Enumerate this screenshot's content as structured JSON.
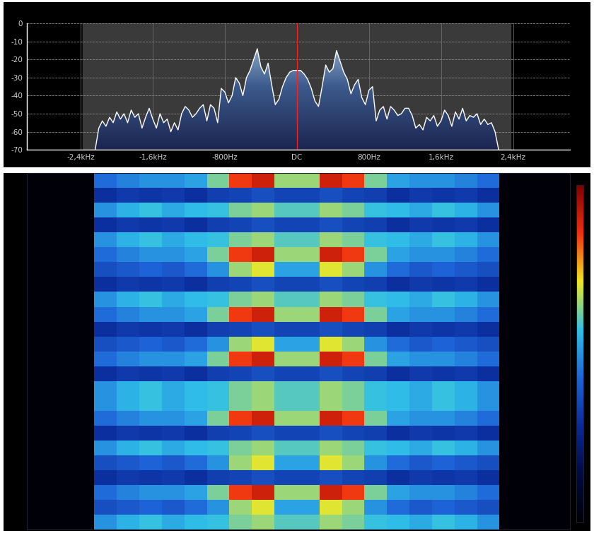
{
  "chart_data": [
    {
      "type": "line",
      "x": [
        -2240,
        -2200,
        -2160,
        -2120,
        -2080,
        -2040,
        -2000,
        -1960,
        -1920,
        -1880,
        -1840,
        -1800,
        -1760,
        -1720,
        -1680,
        -1640,
        -1600,
        -1560,
        -1520,
        -1480,
        -1440,
        -1400,
        -1360,
        -1320,
        -1280,
        -1240,
        -1200,
        -1160,
        -1120,
        -1080,
        -1040,
        -1000,
        -960,
        -920,
        -880,
        -840,
        -800,
        -760,
        -720,
        -680,
        -640,
        -600,
        -560,
        -520,
        -480,
        -440,
        -400,
        -360,
        -320,
        -280,
        -240,
        -200,
        -160,
        -120,
        -80,
        -40,
        0,
        40,
        80,
        120,
        160,
        200,
        240,
        280,
        320,
        360,
        400,
        440,
        480,
        520,
        560,
        600,
        640,
        680,
        720,
        760,
        800,
        840,
        880,
        920,
        960,
        1000,
        1040,
        1080,
        1120,
        1160,
        1200,
        1240,
        1280,
        1320,
        1360,
        1400,
        1440,
        1480,
        1520,
        1560,
        1600,
        1640,
        1680,
        1720,
        1760,
        1800,
        1840,
        1880,
        1920,
        1960,
        2000,
        2040,
        2080,
        2120,
        2160,
        2200,
        2240
      ],
      "values": [
        -70,
        -58,
        -54,
        -57,
        -52,
        -55,
        -49,
        -53,
        -50,
        -55,
        -48,
        -52,
        -50,
        -58,
        -52,
        -47,
        -53,
        -58,
        -50,
        -55,
        -53,
        -60,
        -55,
        -59,
        -50,
        -46,
        -48,
        -52,
        -50,
        -47,
        -45,
        -54,
        -45,
        -47,
        -55,
        -36,
        -38,
        -44,
        -40,
        -30,
        -33,
        -40,
        -30,
        -26,
        -20,
        -14,
        -24,
        -28,
        -22,
        -34,
        -45,
        -42,
        -35,
        -30,
        -27,
        -26,
        -26,
        -26,
        -28,
        -31,
        -36,
        -43,
        -46,
        -35,
        -23,
        -27,
        -25,
        -15,
        -21,
        -27,
        -31,
        -39,
        -34,
        -31,
        -41,
        -45,
        -37,
        -35,
        -54,
        -48,
        -46,
        -53,
        -46,
        -48,
        -51,
        -50,
        -47,
        -47,
        -51,
        -58,
        -56,
        -59,
        -52,
        -54,
        -51,
        -57,
        -54,
        -48,
        -51,
        -57,
        -49,
        -53,
        -47,
        -54,
        -51,
        -52,
        -50,
        -56,
        -53,
        -56,
        -55,
        -60,
        -70
      ],
      "xlim": [
        -3000,
        3035
      ],
      "ylim": [
        -70,
        0
      ],
      "xticks": [
        {
          "value": -2400,
          "label": "-2,4kHz"
        },
        {
          "value": -1600,
          "label": "-1,6kHz"
        },
        {
          "value": -800,
          "label": "-800Hz"
        },
        {
          "value": 0,
          "label": "DC"
        },
        {
          "value": 800,
          "label": "800Hz"
        },
        {
          "value": 1600,
          "label": "1,6kHz"
        },
        {
          "value": 2400,
          "label": "2,4kHz"
        }
      ],
      "yticks": [
        0,
        -10,
        -20,
        -30,
        -40,
        -50,
        -60,
        -70
      ],
      "grid": true,
      "passband": [
        -2375,
        2375
      ],
      "center_line": 0
    },
    {
      "type": "heatmap",
      "x_edges": [
        -3000,
        -2750,
        -2500,
        -2250,
        -2000,
        -1750,
        -1500,
        -1250,
        -1000,
        -750,
        -500,
        -250,
        0,
        250,
        500,
        750,
        1000,
        1250,
        1500,
        1750,
        2000,
        2250,
        2500,
        2750,
        3000
      ],
      "xlim": [
        -3000,
        3035
      ],
      "tick_labels": false,
      "color_range": [
        -90,
        -10
      ],
      "cells": [
        [
          -90,
          -90,
          -90,
          -55,
          -52,
          -50,
          -50,
          -48,
          -40,
          -22,
          -18,
          -38,
          -38,
          -18,
          -22,
          -40,
          -48,
          -50,
          -50,
          -52,
          -55,
          -90,
          -90,
          -90
        ],
        [
          -90,
          -90,
          -90,
          -66,
          -64,
          -65,
          -64,
          -66,
          -63,
          -62,
          -60,
          -62,
          -62,
          -60,
          -62,
          -63,
          -66,
          -64,
          -65,
          -64,
          -66,
          -90,
          -90,
          -90
        ],
        [
          -90,
          -90,
          -90,
          -50,
          -46,
          -44,
          -47,
          -45,
          -44,
          -40,
          -38,
          -42,
          -42,
          -38,
          -40,
          -44,
          -45,
          -47,
          -44,
          -46,
          -50,
          -90,
          -90,
          -90
        ],
        [
          -90,
          -90,
          -90,
          -66,
          -64,
          -65,
          -64,
          -66,
          -63,
          -62,
          -60,
          -62,
          -62,
          -60,
          -62,
          -63,
          -66,
          -64,
          -65,
          -64,
          -66,
          -90,
          -90,
          -90
        ],
        [
          -90,
          -90,
          -90,
          -50,
          -46,
          -44,
          -47,
          -45,
          -44,
          -40,
          -38,
          -42,
          -42,
          -38,
          -40,
          -44,
          -45,
          -47,
          -44,
          -46,
          -50,
          -90,
          -90,
          -90
        ],
        [
          -90,
          -90,
          -90,
          -55,
          -52,
          -50,
          -50,
          -48,
          -40,
          -22,
          -18,
          -38,
          -38,
          -18,
          -22,
          -40,
          -48,
          -50,
          -50,
          -52,
          -55,
          -90,
          -90,
          -90
        ],
        [
          -90,
          -90,
          -90,
          -60,
          -58,
          -56,
          -58,
          -55,
          -50,
          -38,
          -34,
          -48,
          -48,
          -34,
          -38,
          -50,
          -55,
          -58,
          -56,
          -58,
          -60,
          -90,
          -90,
          -90
        ],
        [
          -90,
          -90,
          -90,
          -66,
          -64,
          -65,
          -64,
          -66,
          -63,
          -62,
          -60,
          -62,
          -62,
          -60,
          -62,
          -63,
          -66,
          -64,
          -65,
          -64,
          -66,
          -90,
          -90,
          -90
        ],
        [
          -90,
          -90,
          -90,
          -50,
          -46,
          -44,
          -47,
          -45,
          -44,
          -40,
          -38,
          -42,
          -42,
          -38,
          -40,
          -44,
          -45,
          -47,
          -44,
          -46,
          -50,
          -90,
          -90,
          -90
        ],
        [
          -90,
          -90,
          -90,
          -55,
          -52,
          -50,
          -50,
          -48,
          -40,
          -22,
          -18,
          -38,
          -38,
          -18,
          -22,
          -40,
          -48,
          -50,
          -50,
          -52,
          -55,
          -90,
          -90,
          -90
        ],
        [
          -90,
          -90,
          -90,
          -66,
          -64,
          -65,
          -64,
          -66,
          -63,
          -62,
          -60,
          -62,
          -62,
          -60,
          -62,
          -63,
          -66,
          -64,
          -65,
          -64,
          -66,
          -90,
          -90,
          -90
        ],
        [
          -90,
          -90,
          -90,
          -60,
          -58,
          -56,
          -58,
          -55,
          -50,
          -38,
          -34,
          -48,
          -48,
          -34,
          -38,
          -50,
          -55,
          -58,
          -56,
          -58,
          -60,
          -90,
          -90,
          -90
        ],
        [
          -90,
          -90,
          -90,
          -55,
          -52,
          -50,
          -50,
          -48,
          -40,
          -22,
          -18,
          -38,
          -38,
          -18,
          -22,
          -40,
          -48,
          -50,
          -50,
          -52,
          -55,
          -90,
          -90,
          -90
        ],
        [
          -90,
          -90,
          -90,
          -66,
          -64,
          -65,
          -64,
          -66,
          -63,
          -62,
          -60,
          -62,
          -62,
          -60,
          -62,
          -63,
          -66,
          -64,
          -65,
          -64,
          -66,
          -90,
          -90,
          -90
        ],
        [
          -90,
          -90,
          -90,
          -50,
          -46,
          -44,
          -47,
          -45,
          -44,
          -40,
          -38,
          -42,
          -42,
          -38,
          -40,
          -44,
          -45,
          -47,
          -44,
          -46,
          -50,
          -90,
          -90,
          -90
        ],
        [
          -90,
          -90,
          -90,
          -50,
          -46,
          -44,
          -47,
          -45,
          -44,
          -40,
          -38,
          -42,
          -42,
          -38,
          -40,
          -44,
          -45,
          -47,
          -44,
          -46,
          -50,
          -90,
          -90,
          -90
        ],
        [
          -90,
          -90,
          -90,
          -55,
          -52,
          -50,
          -50,
          -48,
          -40,
          -22,
          -18,
          -38,
          -38,
          -18,
          -22,
          -40,
          -48,
          -50,
          -50,
          -52,
          -55,
          -90,
          -90,
          -90
        ],
        [
          -90,
          -90,
          -90,
          -66,
          -64,
          -65,
          -64,
          -66,
          -63,
          -62,
          -60,
          -62,
          -62,
          -60,
          -62,
          -63,
          -66,
          -64,
          -65,
          -64,
          -66,
          -90,
          -90,
          -90
        ],
        [
          -90,
          -90,
          -90,
          -50,
          -46,
          -44,
          -47,
          -45,
          -44,
          -40,
          -38,
          -42,
          -42,
          -38,
          -40,
          -44,
          -45,
          -47,
          -44,
          -46,
          -50,
          -90,
          -90,
          -90
        ],
        [
          -90,
          -90,
          -90,
          -60,
          -58,
          -56,
          -58,
          -55,
          -50,
          -38,
          -34,
          -48,
          -48,
          -34,
          -38,
          -50,
          -55,
          -58,
          -56,
          -58,
          -60,
          -90,
          -90,
          -90
        ],
        [
          -90,
          -90,
          -90,
          -66,
          -64,
          -65,
          -64,
          -66,
          -63,
          -62,
          -60,
          -62,
          -62,
          -60,
          -62,
          -63,
          -66,
          -64,
          -65,
          -64,
          -66,
          -90,
          -90,
          -90
        ],
        [
          -90,
          -90,
          -90,
          -55,
          -52,
          -50,
          -50,
          -48,
          -40,
          -22,
          -18,
          -38,
          -38,
          -18,
          -22,
          -40,
          -48,
          -50,
          -50,
          -52,
          -55,
          -90,
          -90,
          -90
        ],
        [
          -90,
          -90,
          -90,
          -60,
          -58,
          -56,
          -58,
          -55,
          -50,
          -38,
          -34,
          -48,
          -48,
          -34,
          -38,
          -50,
          -55,
          -58,
          -56,
          -58,
          -60,
          -90,
          -90,
          -90
        ],
        [
          -90,
          -90,
          -90,
          -50,
          -46,
          -44,
          -47,
          -45,
          -44,
          -40,
          -38,
          -42,
          -42,
          -38,
          -40,
          -44,
          -45,
          -47,
          -44,
          -46,
          -50,
          -90,
          -90,
          -90
        ]
      ]
    }
  ]
}
